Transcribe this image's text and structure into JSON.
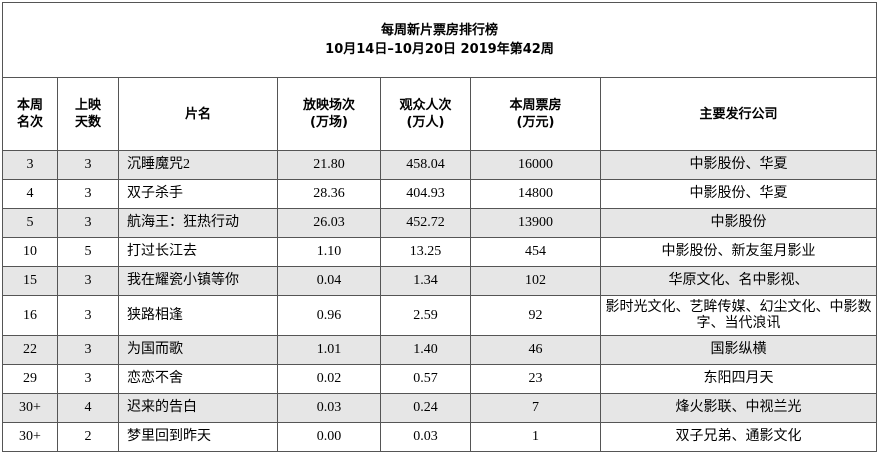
{
  "header": {
    "title": "每周新片票房排行榜",
    "subtitle": "10月14日–10月20日  2019年第42周"
  },
  "table": {
    "columns": [
      [
        "本周",
        "名次"
      ],
      [
        "上映",
        "天数"
      ],
      [
        "片名"
      ],
      [
        "放映场次",
        "(万场)"
      ],
      [
        "观众人次",
        "(万人)"
      ],
      [
        "本周票房",
        "(万元)"
      ],
      [
        "主要发行公司"
      ]
    ],
    "rows": [
      [
        "3",
        "3",
        "沉睡魔咒2",
        "21.80",
        "458.04",
        "16000",
        "中影股份、华夏"
      ],
      [
        "4",
        "3",
        "双子杀手",
        "28.36",
        "404.93",
        "14800",
        "中影股份、华夏"
      ],
      [
        "5",
        "3",
        "航海王：狂热行动",
        "26.03",
        "452.72",
        "13900",
        "中影股份"
      ],
      [
        "10",
        "5",
        "打过长江去",
        "1.10",
        "13.25",
        "454",
        "中影股份、新友玺月影业"
      ],
      [
        "15",
        "3",
        "我在耀瓷小镇等你",
        "0.04",
        "1.34",
        "102",
        "华原文化、名中影视、"
      ],
      [
        "16",
        "3",
        "狭路相逢",
        "0.96",
        "2.59",
        "92",
        "影时光文化、艺眸传媒、幻尘文化、中影数字、当代浪讯"
      ],
      [
        "22",
        "3",
        "为国而歌",
        "1.01",
        "1.40",
        "46",
        "国影纵横"
      ],
      [
        "29",
        "3",
        "恋恋不舍",
        "0.02",
        "0.57",
        "23",
        "东阳四月天"
      ],
      [
        "30+",
        "4",
        "迟来的告白",
        "0.03",
        "0.24",
        "7",
        "烽火影联、中视兰光"
      ],
      [
        "30+",
        "2",
        "梦里回到昨天",
        "0.00",
        "0.03",
        "1",
        "双子兄弟、通影文化"
      ]
    ]
  }
}
